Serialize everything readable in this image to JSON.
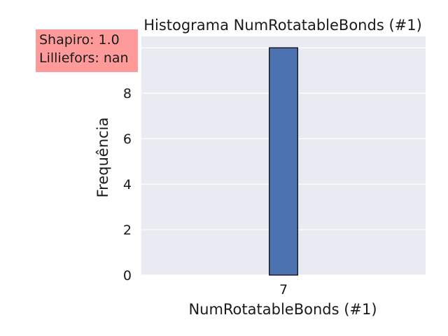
{
  "chart_data": {
    "type": "bar",
    "title": "Histograma NumRotatableBonds (#1)",
    "xlabel": "NumRotatableBonds (#1)",
    "ylabel": "Frequência",
    "categories": [
      "7"
    ],
    "values": [
      10
    ],
    "bin_edges": [
      6.95,
      7.05
    ],
    "xlim": [
      6.5,
      7.5
    ],
    "ylim": [
      0,
      10.5
    ],
    "yticks": [
      0,
      2,
      4,
      6,
      8,
      10
    ],
    "xticks": [
      7
    ],
    "grid": true,
    "colors": {
      "bar": "#4c72b0",
      "bar_edge": "#000000",
      "axes_background": "#eaeaf2",
      "grid": "#ffffff",
      "annotation_background": "#ff9a9a"
    }
  },
  "annotation": {
    "shapiro": "Shapiro: 1.0",
    "lilliefors": "Lilliefors: nan"
  }
}
